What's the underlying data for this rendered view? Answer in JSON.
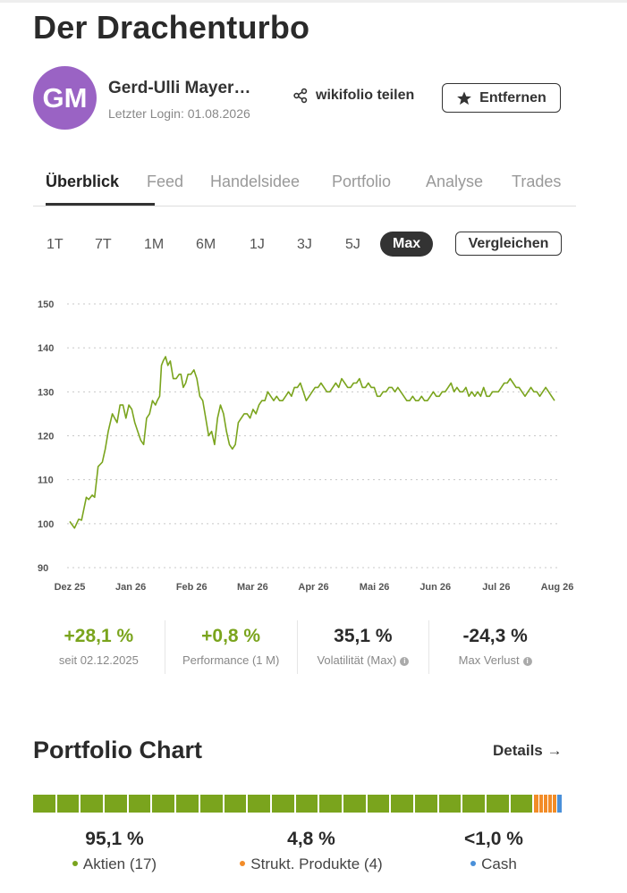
{
  "page": {
    "title": "Der Drachenturbo"
  },
  "profile": {
    "avatar_initials": "GM",
    "avatar_color": "#9a63c4",
    "name": "Gerd-Ulli Mayer…",
    "last_login": "Letzter Login: 01.08.2026",
    "share_label": "wikifolio teilen",
    "share_icon": "share-icon",
    "remove_label": "Entfernen",
    "remove_icon": "star-icon"
  },
  "tabs": [
    {
      "label": "Überblick",
      "active": true
    },
    {
      "label": "Feed"
    },
    {
      "label": "Handelsidee"
    },
    {
      "label": "Portfolio"
    },
    {
      "label": "Analyse"
    },
    {
      "label": "Trades"
    }
  ],
  "ranges": [
    {
      "label": "1T"
    },
    {
      "label": "7T"
    },
    {
      "label": "1M"
    },
    {
      "label": "6M"
    },
    {
      "label": "1J"
    },
    {
      "label": "3J"
    },
    {
      "label": "5J"
    },
    {
      "label": "Max",
      "active": true
    }
  ],
  "compare_label": "Vergleichen",
  "chart_data": {
    "type": "line",
    "series_color": "#7aa41d",
    "ylim": [
      90,
      150
    ],
    "y_ticks": [
      "90",
      "100",
      "110",
      "120",
      "130",
      "140",
      "150"
    ],
    "x_ticks": [
      "Dez 25",
      "Jan 26",
      "Feb 26",
      "Mar 26",
      "Apr 26",
      "Mai 26",
      "Jun 26",
      "Jul 26",
      "Aug 26"
    ],
    "grid": true,
    "x": [
      0,
      0.08,
      0.15,
      0.2,
      0.28,
      0.32,
      0.38,
      0.42,
      0.48,
      0.55,
      0.6,
      0.65,
      0.72,
      0.8,
      0.85,
      0.9,
      0.95,
      1.0,
      1.05,
      1.1,
      1.15,
      1.2,
      1.25,
      1.3,
      1.35,
      1.4,
      1.45,
      1.48,
      1.52,
      1.55,
      1.58,
      1.62,
      1.66,
      1.7,
      1.75,
      1.8,
      1.85,
      1.88,
      1.92,
      1.96,
      2.0,
      2.05,
      2.1,
      2.15,
      2.2,
      2.25,
      2.3,
      2.35,
      2.4,
      2.45,
      2.5,
      2.55,
      2.6,
      2.65,
      2.7,
      2.75,
      2.8,
      2.85,
      2.9,
      2.95,
      3.0,
      3.05,
      3.1,
      3.15,
      3.2,
      3.25,
      3.3,
      3.35,
      3.4,
      3.45,
      3.5,
      3.55,
      3.6,
      3.65,
      3.7,
      3.75,
      3.8,
      3.85,
      3.9,
      3.95,
      4.0,
      4.05,
      4.1,
      4.15,
      4.2,
      4.25,
      4.3,
      4.35,
      4.4,
      4.45,
      4.5,
      4.55,
      4.6,
      4.65,
      4.7,
      4.75,
      4.8,
      4.85,
      4.9,
      4.95,
      5.0,
      5.05,
      5.1,
      5.15,
      5.2,
      5.25,
      5.3,
      5.35,
      5.4,
      5.45,
      5.5,
      5.55,
      5.6,
      5.65,
      5.7,
      5.75,
      5.8,
      5.85,
      5.9,
      5.95,
      6.0,
      6.05,
      6.1,
      6.15,
      6.2,
      6.25,
      6.3,
      6.35,
      6.4,
      6.45,
      6.5,
      6.55,
      6.6,
      6.65,
      6.7,
      6.75,
      6.8,
      6.85,
      6.9,
      6.95,
      7.0,
      7.05,
      7.1,
      7.15,
      7.2,
      7.25,
      7.3,
      7.35,
      7.4,
      7.45,
      7.5,
      7.55,
      7.6,
      7.65,
      7.7,
      7.75,
      7.8,
      7.85,
      7.9,
      7.95,
      8.0,
      8.05,
      8.1,
      8.15,
      8.2
    ],
    "values": [
      100.5,
      99,
      101,
      100.8,
      106,
      105.5,
      106.5,
      106,
      113,
      114,
      117,
      121,
      125,
      123,
      127,
      127,
      124,
      127,
      126,
      123,
      121,
      119,
      118,
      124,
      125,
      128,
      127,
      128,
      129,
      136,
      137,
      138,
      136,
      137,
      133,
      133,
      134,
      134,
      131,
      132,
      134,
      134,
      135,
      133,
      129,
      128,
      124,
      120,
      121,
      118,
      124,
      127,
      125,
      121,
      118,
      117,
      118,
      123,
      124,
      125,
      125,
      124,
      126,
      125,
      127,
      128,
      128,
      130,
      129,
      128,
      129,
      128,
      128,
      129,
      130,
      129,
      131,
      131,
      132,
      130,
      128,
      129,
      130,
      131,
      131,
      132,
      131,
      130,
      130,
      131,
      132,
      131,
      133,
      132,
      131,
      131,
      132,
      132,
      133,
      131,
      131,
      132,
      131,
      131,
      129,
      129,
      130,
      130,
      131,
      131,
      130,
      131,
      130,
      129,
      128,
      128,
      129,
      128,
      128,
      129,
      128,
      128,
      129,
      130,
      129,
      129,
      130,
      130,
      131,
      132,
      130,
      131,
      130,
      130,
      131,
      129,
      130,
      129,
      130,
      129,
      131,
      129,
      129,
      130,
      130,
      130,
      131,
      132,
      132,
      133,
      132,
      131,
      131,
      130,
      129,
      130,
      131,
      130,
      130,
      129,
      130,
      131,
      130,
      129,
      128
    ],
    "ylabel": "",
    "xlabel": ""
  },
  "stats": [
    {
      "value": "+28,1 %",
      "label": "seit 02.12.2025",
      "tone": "pos",
      "info": false
    },
    {
      "value": "+0,8 %",
      "label": "Performance (1 M)",
      "tone": "pos",
      "info": false
    },
    {
      "value": "35,1 %",
      "label": "Volatilität (Max)",
      "tone": "neu",
      "info": true
    },
    {
      "value": "-24,3 %",
      "label": "Max Verlust",
      "tone": "neu",
      "info": true
    }
  ],
  "portfolio": {
    "title": "Portfolio Chart",
    "details_label": "Details →",
    "allocation": [
      {
        "value": "95,1 %",
        "label": "Aktien (17)",
        "color": "#7aa41d",
        "share": 0.951
      },
      {
        "value": "4,8 %",
        "label": "Strukt. Produkte (4)",
        "color": "#f28c28",
        "share": 0.048
      },
      {
        "value": "<1,0 %",
        "label": "Cash",
        "color": "#4a90d9",
        "share": 0.01
      }
    ]
  }
}
